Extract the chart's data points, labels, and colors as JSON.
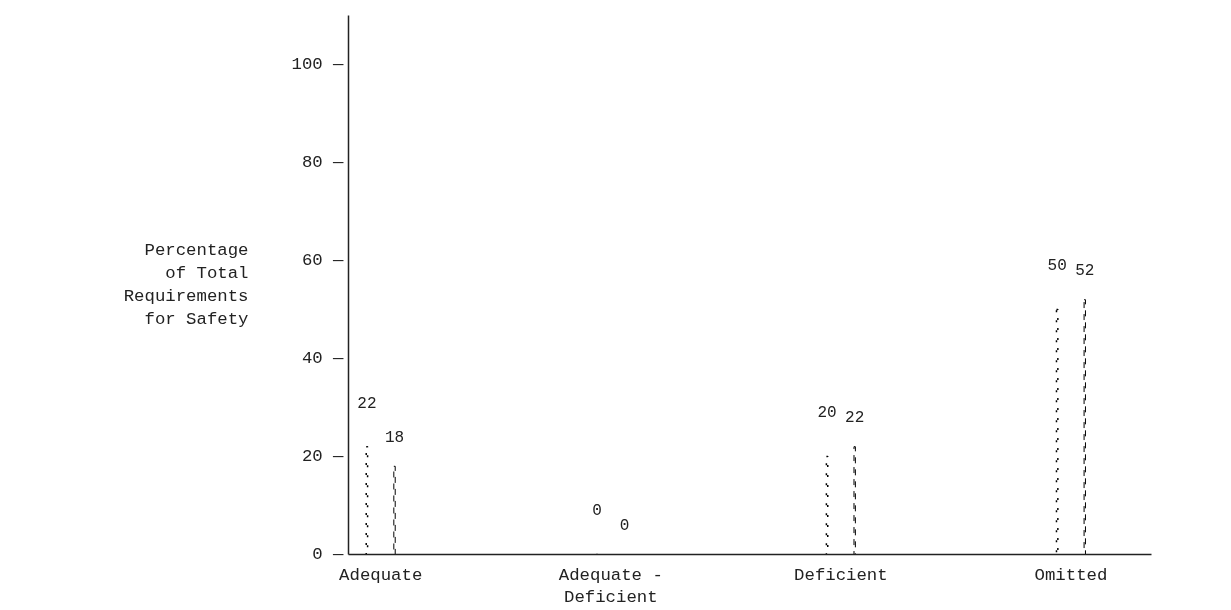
{
  "chart_data": {
    "type": "bar",
    "ylabel": "Percentage\nof Total\nRequirements\nfor Safety",
    "categories": [
      "Adequate",
      "Adequate -\nDeficient",
      "Deficient",
      "Omitted"
    ],
    "series": [
      {
        "color": "#000000",
        "line_style": "dotted",
        "values": [
          22,
          0,
          20,
          50
        ]
      },
      {
        "color": "#000000",
        "line_style": "dashed",
        "values": [
          18,
          0,
          22,
          52
        ]
      }
    ],
    "ylim": [
      0,
      110
    ],
    "yticks": [
      {
        "value": 0,
        "label": "0 —"
      },
      {
        "value": 20,
        "label": "20 —"
      },
      {
        "value": 40,
        "label": "40 —"
      },
      {
        "value": 60,
        "label": "60 —"
      },
      {
        "value": 80,
        "label": "80 —"
      },
      {
        "value": 100,
        "label": "100 —"
      }
    ],
    "grid": false,
    "data_labels": true
  }
}
